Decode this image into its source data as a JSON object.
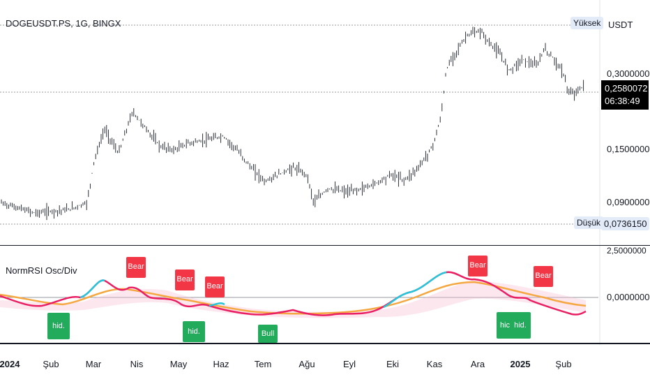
{
  "ticker": "DOGEUSDT.PS, 1G, BINGX",
  "currency": "USDT",
  "price_axis": [
    "0,3000000",
    "0,1500000",
    "0,0900000"
  ],
  "high_label": "Yüksek",
  "low_label": "Düşük",
  "last_price": "0,2580072",
  "countdown": "06:38:49",
  "low_price": "0,0736150",
  "osc_axis_top": "2,5000000",
  "osc_axis_zero": "0,0000000",
  "indicator_name": "NormRSI Osc/Div",
  "time_axis": [
    "2024",
    "Şub",
    "Mar",
    "Nis",
    "May",
    "Haz",
    "Tem",
    "Ağu",
    "Eyl",
    "Eki",
    "Kas",
    "Ara",
    "2025",
    "Şub"
  ],
  "signals": {
    "bear": [
      "Bear",
      "Bear",
      "Bear",
      "Bear",
      "Bear"
    ],
    "hidden": [
      "hid.",
      "hid.",
      "hic",
      "hid."
    ],
    "bull": [
      "Bull"
    ]
  },
  "colors": {
    "bear": "#f23645",
    "hidden": "#22ab5a",
    "osc_fast_up": "#26c6da",
    "osc_fast_down": "#e91e63",
    "osc_slow": "#f5a742"
  }
}
